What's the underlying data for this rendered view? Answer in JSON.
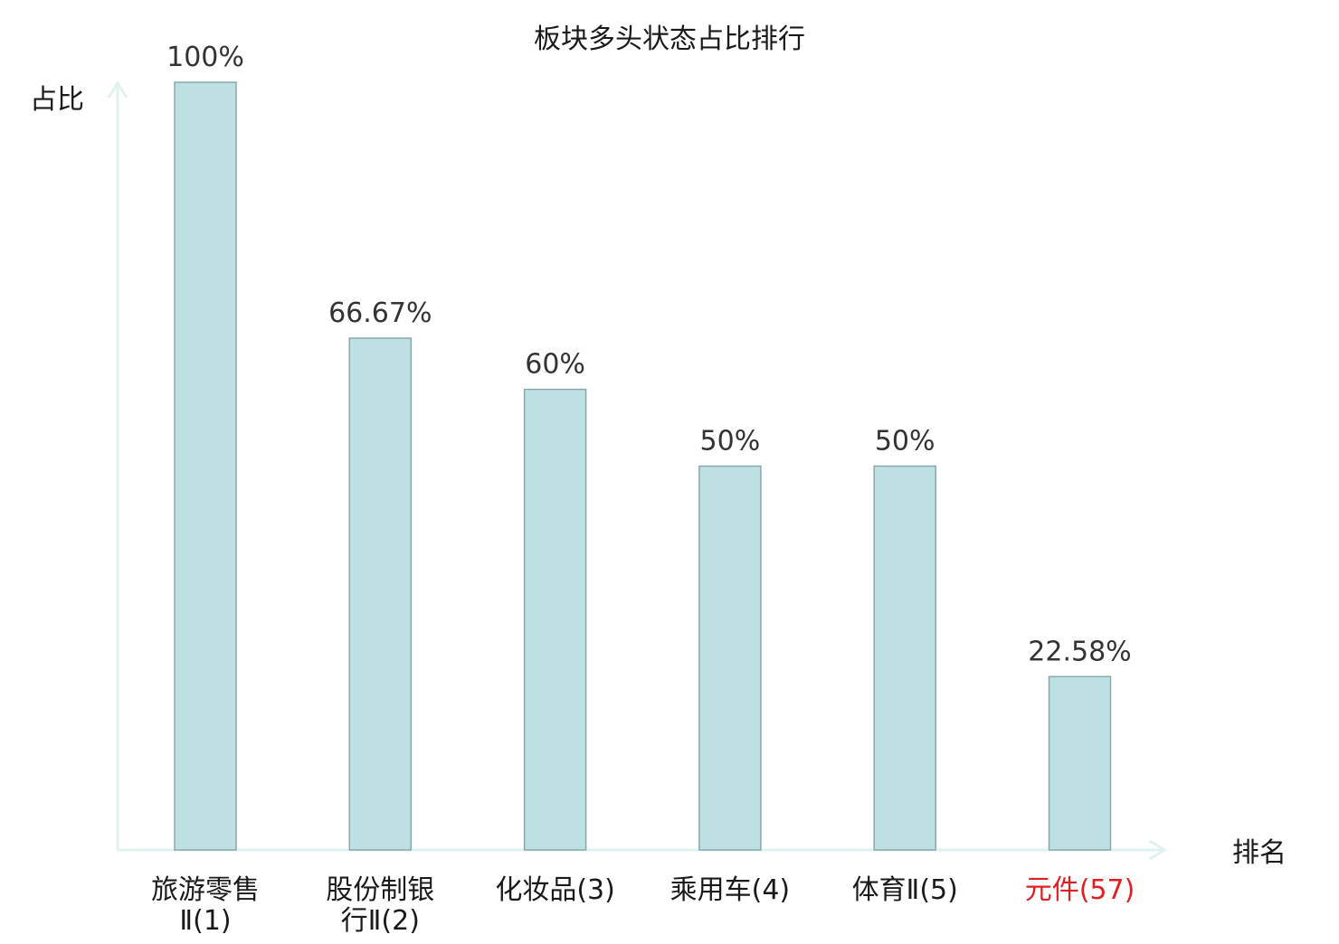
{
  "chart_data": {
    "type": "bar",
    "title": "板块多头状态占比排行",
    "ylabel": "占比",
    "xlabel": "排名",
    "ylim": [
      0,
      100
    ],
    "grid": false,
    "categories": [
      {
        "name": "旅游零售Ⅱ",
        "rank": "(1)",
        "lines": [
          "旅游零售",
          "Ⅱ(1)"
        ]
      },
      {
        "name": "股份制银行Ⅱ",
        "rank": "(2)",
        "lines": [
          "股份制银",
          "行Ⅱ(2)"
        ]
      },
      {
        "name": "化妆品",
        "rank": "(3)",
        "lines": [
          "化妆品(3)"
        ]
      },
      {
        "name": "乘用车",
        "rank": "(4)",
        "lines": [
          "乘用车(4)"
        ]
      },
      {
        "name": "体育Ⅱ",
        "rank": "(5)",
        "lines": [
          "体育Ⅱ(5)"
        ]
      },
      {
        "name": "元件",
        "rank": "(57)",
        "lines": [
          "元件(57)"
        ],
        "highlight": true
      }
    ],
    "values": [
      100,
      66.67,
      60,
      50,
      50,
      22.58
    ],
    "value_labels": [
      "100%",
      "66.67%",
      "60%",
      "50%",
      "50%",
      "22.58%"
    ],
    "colors": {
      "bar_fill": "#bde0e3",
      "bar_stroke": "#8aa8ac",
      "axis": "#e0f2ef",
      "highlight_text": "#e02020",
      "text": "#1a1a1a",
      "rank_text": "#333333"
    }
  }
}
